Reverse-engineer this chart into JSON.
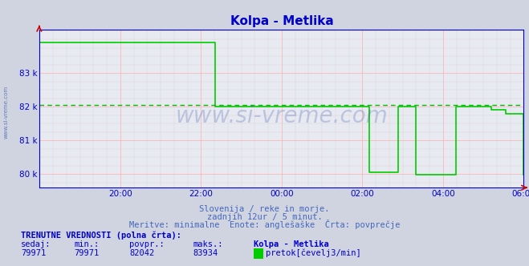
{
  "title": "Kolpa - Metlika",
  "title_color": "#0000cc",
  "bg_color": "#d0d4e0",
  "plot_bg_color": "#e8eaf2",
  "line_color": "#00cc00",
  "avg_line_color": "#00bb00",
  "avg_value": 82042,
  "ymin": 79600,
  "ymax": 84300,
  "yticks": [
    80000,
    81000,
    82000,
    83000
  ],
  "ytick_labels": [
    "80 k",
    "81 k",
    "82 k",
    "83 k"
  ],
  "xtick_positions": [
    24,
    48,
    72,
    96,
    120,
    144
  ],
  "xtick_labels": [
    "20:00",
    "22:00",
    "00:00",
    "02:00",
    "04:00",
    "06:00"
  ],
  "x_num_points": 145,
  "grid_color": "#ffaaaa",
  "grid_minor_color": "#ddbbbb",
  "axis_color": "#0000cc",
  "spine_color": "#0000cc",
  "watermark": "www.si-vreme.com",
  "watermark_color": "#3355aa",
  "watermark_alpha": 0.25,
  "left_label": "www.si-vreme.com",
  "footer_line1": "Slovenija / reke in morje.",
  "footer_line2": "zadnjih 12ur / 5 minut.",
  "footer_line3": "Meritve: minimalne  Enote: anglešaške  Črta: povprečje",
  "footer_color": "#4466bb",
  "table_header": "TRENUTNE VREDNOSTI (polna črta):",
  "table_col1": "sedaj:",
  "table_col2": "min.:",
  "table_col3": "povpr.:",
  "table_col4": "maks.:",
  "table_col5": "Kolpa - Metlika",
  "table_val1": "79971",
  "table_val2": "79971",
  "table_val3": "82042",
  "table_val4": "83934",
  "table_legend": "pretok[čevelj3/min]",
  "legend_color": "#00cc00",
  "flow_data": [
    83900,
    83900,
    83900,
    83900,
    83900,
    83900,
    83900,
    83900,
    83900,
    83900,
    83900,
    83900,
    83900,
    83900,
    83900,
    83900,
    83900,
    83900,
    83900,
    83900,
    83900,
    83900,
    83900,
    83900,
    83900,
    83900,
    83900,
    83900,
    83900,
    83900,
    83900,
    83900,
    83900,
    83900,
    83900,
    83900,
    83900,
    83900,
    83900,
    83900,
    83900,
    83900,
    83900,
    83900,
    83900,
    83900,
    83900,
    83900,
    83900,
    82000,
    82000,
    82000,
    82000,
    82000,
    82000,
    82000,
    82000,
    82000,
    82000,
    82000,
    82000,
    82000,
    82000,
    82000,
    82000,
    82000,
    82000,
    82000,
    82000,
    82000,
    82000,
    82000,
    82000,
    82000,
    82000,
    82000,
    82000,
    82000,
    82000,
    82000,
    82000,
    82000,
    82000,
    82000,
    82000,
    82000,
    82000,
    82000,
    82000,
    82000,
    82000,
    82000,
    80050,
    80050,
    80050,
    80050,
    80050,
    80050,
    80050,
    80050,
    82000,
    82000,
    82000,
    82000,
    82000,
    79971,
    79971,
    79971,
    79971,
    79971,
    79971,
    79971,
    79971,
    79971,
    79971,
    79971,
    82000,
    82000,
    82000,
    82000,
    82000,
    82000,
    82000,
    82000,
    82000,
    82000,
    81900,
    81900,
    81900,
    81900,
    81800,
    81800,
    81800,
    81800,
    81800,
    79971
  ]
}
